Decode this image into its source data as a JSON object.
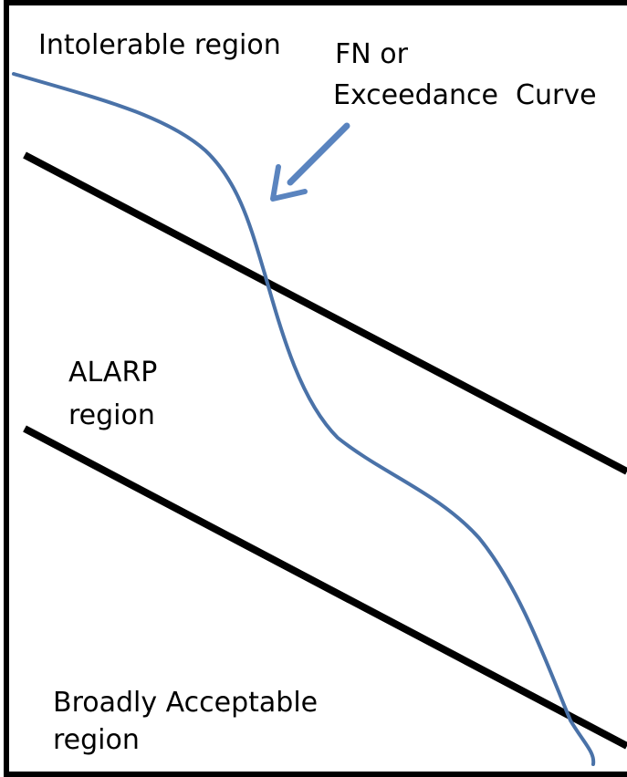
{
  "labels": {
    "intolerable": "Intolerable region",
    "curve_line1": "FN or",
    "curve_line2": "Exceedance  Curve",
    "alarp_line1": "ALARP",
    "alarp_line2": "region",
    "acceptable_line1": "Broadly Acceptable",
    "acceptable_line2": "region"
  },
  "colors": {
    "frame": "#000000",
    "boundary": "#000000",
    "curve": "#4a72a8",
    "arrow": "#5a84bf"
  }
}
